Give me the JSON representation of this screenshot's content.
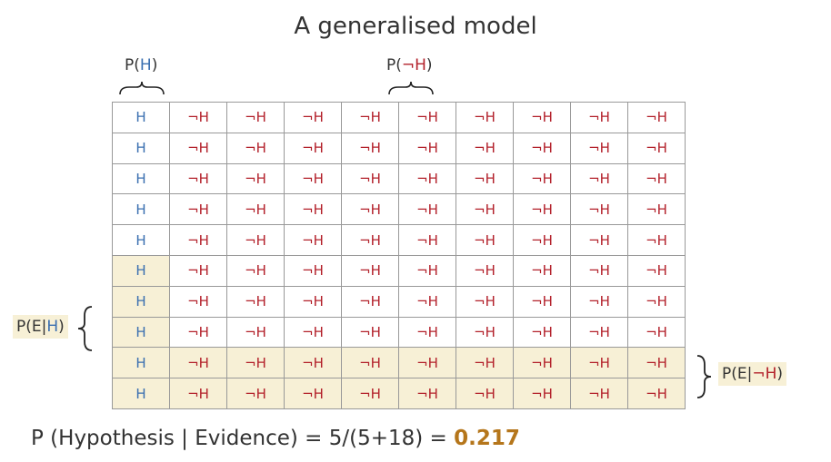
{
  "title": "A generalised model",
  "labels": {
    "p_h_prefix": "P(",
    "p_h_sym": "H",
    "p_h_suffix": ")",
    "p_nh_prefix": "P(",
    "p_nh_sym": "¬H",
    "p_nh_suffix": ")",
    "p_e_h_prefix": "P(E|",
    "p_e_h_sym": "H",
    "p_e_h_suffix": ")",
    "p_e_nh_prefix": "P(E|",
    "p_e_nh_sym": "¬H",
    "p_e_nh_suffix": ")"
  },
  "grid": {
    "rows": 10,
    "cols": 10,
    "h_symbol": "H",
    "not_h_symbol": "¬H",
    "h_column_count": 1,
    "highlight_h_rows_from": 5,
    "highlight_nh_rows_from": 8,
    "colors": {
      "h": "#3a6fb0",
      "not_h": "#b3212b",
      "highlight": "#f7f0d6"
    }
  },
  "formula": {
    "text": "P (Hypothesis | Evidence) = 5/(5+18) = ",
    "result": "0.217",
    "result_color": "#b5761b"
  }
}
